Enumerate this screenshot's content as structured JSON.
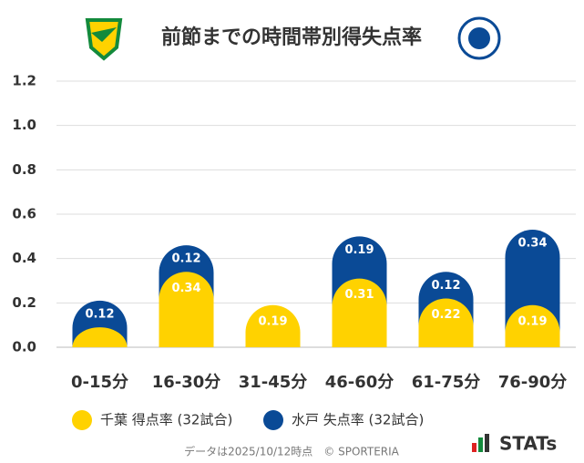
{
  "chart_data": {
    "type": "stacked-bar",
    "title": "前節までの時間帯別得失点率",
    "categories": [
      "0-15分",
      "16-30分",
      "31-45分",
      "46-60分",
      "61-75分",
      "76-90分"
    ],
    "series": [
      {
        "name": "千葉 得点率 (32試合)",
        "color": "#ffd200",
        "values": [
          0.09,
          0.34,
          0.19,
          0.31,
          0.22,
          0.19
        ],
        "value_labels": [
          null,
          "0.34",
          "0.19",
          "0.31",
          "0.22",
          "0.19"
        ]
      },
      {
        "name": "水戸 失点率 (32試合)",
        "color": "#0a4a96",
        "values": [
          0.12,
          0.12,
          null,
          0.19,
          0.12,
          0.34
        ]
      }
    ],
    "ylim": [
      0,
      1.2
    ],
    "yticks": [
      {
        "value": 0,
        "label": "0.0"
      },
      {
        "value": 0.2,
        "label": "0.2"
      },
      {
        "value": 0.4,
        "label": "0.4"
      },
      {
        "value": 0.6,
        "label": "0.6"
      },
      {
        "value": 0.8,
        "label": "0.8"
      },
      {
        "value": 1.0,
        "label": "1.0"
      },
      {
        "value": 1.2,
        "label": "1.2"
      }
    ],
    "grid": true,
    "footnote": "データは2025/10/12時点　© SPORTERIA",
    "brand": "STATs"
  }
}
